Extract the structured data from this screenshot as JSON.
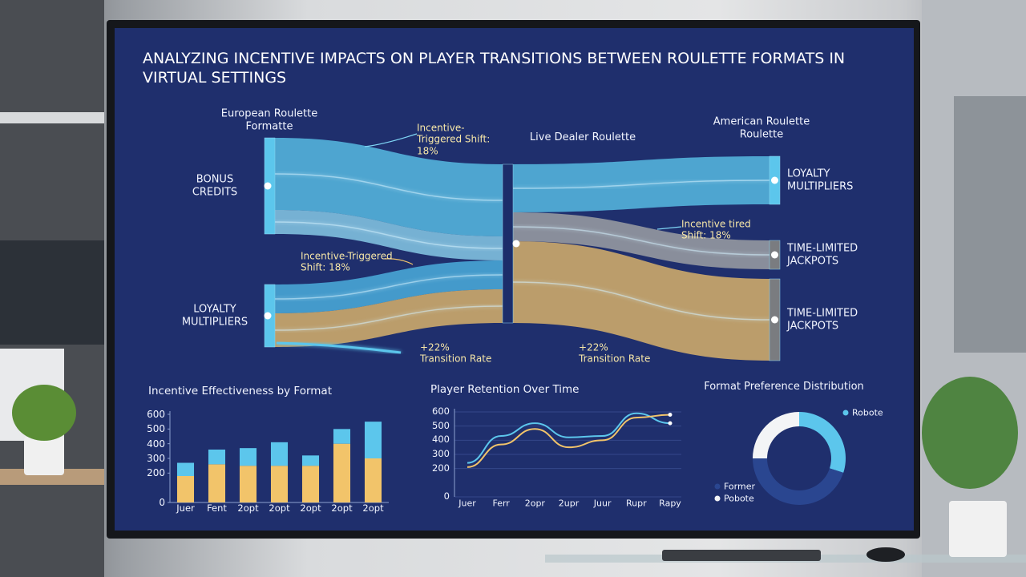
{
  "title": "ANALYZING INCENTIVE IMPACTS ON PLAYER TRANSITIONS BETWEEN ROULETTE FORMATS IN VIRTUAL SETTINGS",
  "chart_data": [
    {
      "type": "sankey",
      "columns": [
        "European Roulette Formatte",
        "Live Dealer Roulette",
        "American Roulette Roulette"
      ],
      "nodes": [
        {
          "label": "BONUS CREDITS",
          "column": 0
        },
        {
          "label": "LOYALTY MULTIPLIERS",
          "column": 0
        },
        {
          "label": null,
          "column": 1
        },
        {
          "label": "LOYALTY MULTIPLIERS",
          "column": 2
        },
        {
          "label": "TIME-LIMITED JACKPOTS",
          "column": 2
        },
        {
          "label": "TIME-LIMITED JACKPOTS",
          "column": 2
        }
      ],
      "links": [
        {
          "source": 0,
          "target": 2,
          "value": 75,
          "color": "#5cc6ec"
        },
        {
          "source": 0,
          "target": 2,
          "value": 25,
          "color": "#8fd6f0"
        },
        {
          "source": 1,
          "target": 2,
          "value": 30,
          "color": "#4fb8e6"
        },
        {
          "source": 1,
          "target": 2,
          "value": 35,
          "color": "#e8bd6a"
        },
        {
          "source": 2,
          "target": 3,
          "value": 50,
          "color": "#5cc6ec"
        },
        {
          "source": 2,
          "target": 4,
          "value": 30,
          "color": "#a8a9a8"
        },
        {
          "source": 2,
          "target": 5,
          "value": 85,
          "color": "#e8bd6a"
        }
      ],
      "annotations": [
        "Incentive-Triggered Shift: 18%",
        "Incentive-Triggered Shift: 18%",
        "Incentive tired Shift: 18%",
        "+22% Transition Rate",
        "+22% Transition Rate"
      ]
    },
    {
      "type": "bar",
      "title": "Incentive Effectiveness by Format",
      "categories": [
        "Juer",
        "Fent",
        "2opt",
        "2opt",
        "2opt",
        "2opt",
        "2opt"
      ],
      "series": [
        {
          "color": "#f2c46a",
          "values": [
            180,
            260,
            250,
            250,
            250,
            400,
            300
          ]
        },
        {
          "color": "#5cc6ec",
          "values": [
            90,
            100,
            120,
            160,
            70,
            100,
            250
          ]
        }
      ],
      "ylim": [
        0,
        600
      ],
      "yticks": [
        0,
        200,
        300,
        400,
        500,
        600
      ]
    },
    {
      "type": "line",
      "title": "Player Retention Over Time",
      "categories": [
        "Juer",
        "Ferr",
        "2opr",
        "2upr",
        "Juur",
        "Rupr",
        "Rapy"
      ],
      "series": [
        {
          "color": "#5cc6ec",
          "values": [
            240,
            430,
            520,
            420,
            430,
            590,
            520
          ]
        },
        {
          "color": "#f2c46a",
          "values": [
            210,
            370,
            480,
            350,
            400,
            560,
            580
          ]
        }
      ],
      "ylim": [
        0,
        600
      ],
      "yticks": [
        0,
        200,
        300,
        400,
        500,
        600
      ]
    },
    {
      "type": "pie",
      "title": "Format Preference Distribution",
      "labels": [
        "Robote",
        "Former",
        "Pobote"
      ],
      "values": [
        30,
        45,
        25
      ],
      "colors": [
        "#5cc6ec",
        "#2a4690",
        "#f3f4f6"
      ]
    }
  ]
}
